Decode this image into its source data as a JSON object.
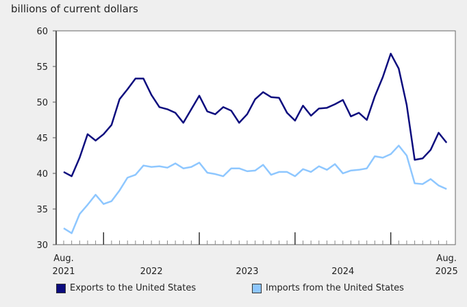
{
  "chart_data": {
    "type": "line",
    "ylabel": "billions of current dollars",
    "ylim": [
      30,
      60
    ],
    "yticks": [
      30,
      35,
      40,
      45,
      50,
      55,
      60
    ],
    "x_start": "2021-08",
    "x_end": "2025-08",
    "xtick_labels": [
      {
        "label": "Aug.",
        "label2": "2021",
        "month": "2021-08"
      },
      {
        "label": "2022",
        "month": "2022-07"
      },
      {
        "label": "2023",
        "month": "2023-07"
      },
      {
        "label": "2024",
        "month": "2024-07"
      },
      {
        "label": "Aug.",
        "label2": "2025",
        "month": "2025-08"
      }
    ],
    "grid": false,
    "legend_position": "bottom",
    "series": [
      {
        "name": "Exports to the United States",
        "color": "#0c0c7e",
        "values": [
          40.2,
          39.6,
          42.2,
          45.5,
          44.6,
          45.5,
          46.8,
          50.4,
          51.8,
          53.3,
          53.3,
          51.0,
          49.3,
          49.0,
          48.5,
          47.1,
          49.0,
          50.9,
          48.7,
          48.3,
          49.3,
          48.8,
          47.1,
          48.3,
          50.4,
          51.4,
          50.7,
          50.6,
          48.5,
          47.4,
          49.5,
          48.1,
          49.1,
          49.2,
          49.7,
          50.3,
          48.0,
          48.5,
          47.5,
          50.8,
          53.5,
          56.8,
          54.7,
          49.6,
          41.9,
          42.1,
          43.3,
          45.7,
          44.3
        ]
      },
      {
        "name": "Imports from the United States",
        "color": "#8ec7ff",
        "values": [
          32.3,
          31.6,
          34.3,
          35.6,
          37.0,
          35.7,
          36.1,
          37.6,
          39.4,
          39.8,
          41.1,
          40.9,
          41.0,
          40.8,
          41.4,
          40.7,
          40.9,
          41.5,
          40.1,
          39.9,
          39.6,
          40.7,
          40.7,
          40.3,
          40.4,
          41.2,
          39.8,
          40.2,
          40.2,
          39.6,
          40.6,
          40.2,
          41.0,
          40.5,
          41.3,
          40.0,
          40.4,
          40.5,
          40.7,
          42.4,
          42.2,
          42.7,
          43.9,
          42.5,
          38.6,
          38.5,
          39.2,
          38.3,
          37.8
        ]
      }
    ]
  }
}
